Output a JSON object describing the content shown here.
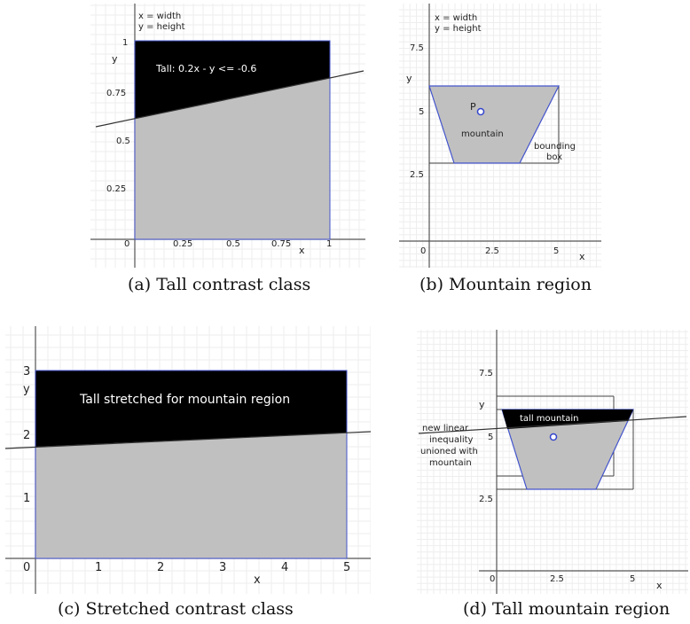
{
  "panels": {
    "a": {
      "caption": "(a) Tall contrast class",
      "legend": [
        "x = width",
        "y = height"
      ],
      "axis_x": "x",
      "axis_y": "y",
      "ticks_x": [
        "0",
        "0.25",
        "0.5",
        "0.75",
        "1"
      ],
      "ticks_y": [
        "1",
        "0.75",
        "0.5",
        "0.25"
      ],
      "region_label": "Tall: 0.2x - y <= -0.6"
    },
    "b": {
      "caption": "(b) Mountain region",
      "legend": [
        "x = width",
        "y = height"
      ],
      "axis_x": "x",
      "axis_y": "y",
      "ticks_x": [
        "0",
        "2.5",
        "5"
      ],
      "ticks_y": [
        "7.5",
        "5",
        "2.5"
      ],
      "point_label": "P",
      "region_label": "mountain",
      "bbox_label": [
        "bounding",
        "box"
      ]
    },
    "c": {
      "caption": "(c) Stretched contrast class",
      "axis_x": "x",
      "axis_y": "y",
      "ticks_x": [
        "0",
        "1",
        "2",
        "3",
        "4",
        "5"
      ],
      "ticks_y": [
        "3",
        "2",
        "1"
      ],
      "region_label": "Tall stretched for mountain region"
    },
    "d": {
      "caption": "(d) Tall mountain region",
      "axis_x": "x",
      "axis_y": "y",
      "ticks_x": [
        "0",
        "2.5",
        "5"
      ],
      "ticks_y": [
        "7.5",
        "5",
        "2.5"
      ],
      "region_label": "tall mountain",
      "side_label": [
        "new linear",
        "inequality",
        "unioned with",
        "mountain"
      ]
    }
  },
  "colors": {
    "grid_minor": "#eeeeee",
    "grid_major": "#d6d6d6",
    "axis": "#555555",
    "region_dark": "#000000",
    "region_gray": "#c0c0c0",
    "edge_blue": "#4455cc",
    "point_blue": "#3344cc"
  }
}
